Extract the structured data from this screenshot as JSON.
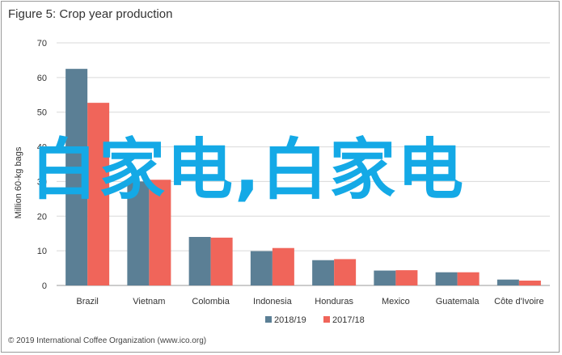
{
  "page": {
    "title": "Figure 5: Crop year production",
    "credit": "© 2019 International Coffee Organization (www.ico.org)",
    "watermark": "白家电,白家电"
  },
  "chart_data": {
    "type": "bar",
    "title": "Figure 5: Crop year production",
    "ylabel": "Million 60-kg bags",
    "xlabel": "",
    "ylim": [
      0,
      70
    ],
    "yticks": [
      0,
      10,
      20,
      30,
      40,
      50,
      60,
      70
    ],
    "grid": true,
    "legend": "bottom",
    "categories": [
      "Brazil",
      "Vietnam",
      "Colombia",
      "Indonesia",
      "Honduras",
      "Mexico",
      "Guatemala",
      "Côte d'Ivoire"
    ],
    "series": [
      {
        "name": "2018/19",
        "color": "#5b7f95",
        "values": [
          62.5,
          30.0,
          14.0,
          9.9,
          7.3,
          4.3,
          3.8,
          1.7
        ]
      },
      {
        "name": "2017/18",
        "color": "#f0655a",
        "values": [
          52.7,
          30.5,
          13.8,
          10.8,
          7.6,
          4.4,
          3.8,
          1.4
        ]
      }
    ]
  }
}
